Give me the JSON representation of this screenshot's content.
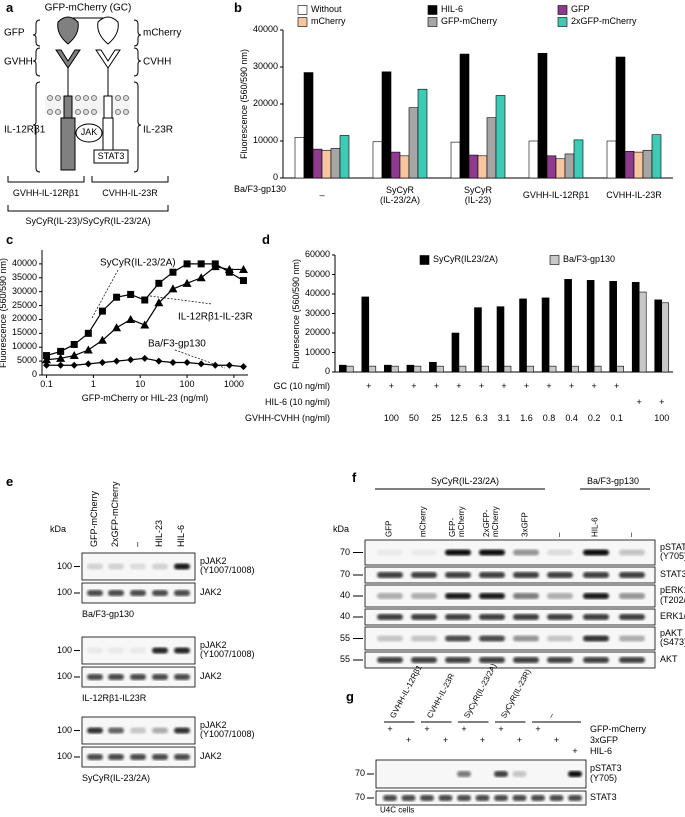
{
  "panel_labels": [
    "a",
    "b",
    "c",
    "d",
    "e",
    "f",
    "g"
  ],
  "panel_a": {
    "title": "GFP-mCherry (GC)",
    "left_labels": [
      "GFP",
      "GVHH",
      "IL-12Rβ1"
    ],
    "right_labels": [
      "mCherry",
      "CVHH",
      "IL-23R"
    ],
    "jak": "JAK",
    "stat": "STAT3",
    "receptors": [
      "GVHH-IL-12Rβ1",
      "CVHH-IL-23R"
    ],
    "construct": "SyCyR(IL-23)/SyCyR(IL-23/2A)"
  },
  "chart_data": [
    {
      "type": "bar",
      "ylabel": "Fluorescence (560/590 nm)",
      "xlabel": "Ba/F3-gp130",
      "categories": [
        "–",
        "SyCyR\n(IL-23/2A)",
        "SyCyR\n(IL-23)",
        "GVHH-IL-12Rβ1",
        "CVHH-IL-23R"
      ],
      "series": [
        {
          "name": "Without",
          "color": "#ffffff",
          "values": [
            11000,
            9800,
            9700,
            10000,
            10000
          ]
        },
        {
          "name": "HIL-6",
          "color": "#000000",
          "values": [
            28500,
            28700,
            33500,
            33700,
            32700
          ]
        },
        {
          "name": "GFP",
          "color": "#8e3a8e",
          "values": [
            7800,
            7000,
            6200,
            6000,
            7200
          ]
        },
        {
          "name": "mCherry",
          "color": "#f6c6a0",
          "values": [
            7500,
            6000,
            6000,
            5200,
            7000
          ]
        },
        {
          "name": "GFP-mCherry",
          "color": "#a6a6a6",
          "values": [
            8000,
            19000,
            16300,
            6500,
            7500
          ]
        },
        {
          "name": "2xGFP-mCherry",
          "color": "#3ecbb5",
          "values": [
            11500,
            24000,
            22300,
            10300,
            11700
          ]
        }
      ],
      "ylim": [
        0,
        40000
      ],
      "yticks": [
        0,
        10000,
        20000,
        30000,
        40000
      ],
      "legend": "top"
    },
    {
      "type": "line",
      "xscale": "log",
      "ylabel": "Fluorescence (560/590 nm)",
      "xlabel": "GFP-mCherry or HIL-23 (ng/ml)",
      "x": [
        0.1,
        0.2,
        0.39,
        0.78,
        1.56,
        3.13,
        6.25,
        12.5,
        25,
        50,
        100,
        200,
        400,
        800,
        1600
      ],
      "series": [
        {
          "name": "SyCyR(IL-23/2A)",
          "color": "#000000",
          "marker": "square",
          "values": [
            7000,
            8500,
            11000,
            15000,
            23000,
            28000,
            29000,
            27000,
            33000,
            37000,
            40000,
            40000,
            40000,
            37000,
            34000
          ]
        },
        {
          "name": "IL-12Rβ1-IL-23R",
          "color": "#000000",
          "marker": "triangle",
          "values": [
            5500,
            6000,
            7000,
            9000,
            12500,
            17000,
            20000,
            18000,
            26000,
            31000,
            33000,
            35000,
            39000,
            38000,
            38000
          ]
        },
        {
          "name": "Ba/F3-gp130",
          "color": "#000000",
          "marker": "diamond",
          "values": [
            3500,
            3500,
            3500,
            4000,
            4500,
            5000,
            5500,
            6000,
            5000,
            4500,
            4500,
            4000,
            3500,
            3500,
            3000
          ]
        }
      ],
      "xlim": [
        0.08,
        2000
      ],
      "xticks": [
        0.1,
        1,
        10,
        100,
        1000
      ],
      "ylim": [
        0,
        45000
      ],
      "yticks": [
        0,
        5000,
        10000,
        15000,
        20000,
        25000,
        30000,
        35000,
        40000
      ]
    },
    {
      "type": "bar",
      "ylabel": "Fluorescence (560/590 nm)",
      "categories": [
        null,
        null,
        null,
        null,
        null,
        null,
        null,
        null,
        null,
        null,
        null,
        null,
        null,
        null,
        null
      ],
      "series": [
        {
          "name": "SyCyR(IL23/2A)",
          "color": "#000000",
          "values": [
            3500,
            38500,
            3500,
            3500,
            5000,
            20000,
            33000,
            33500,
            37500,
            38000,
            47500,
            47000,
            46500,
            46000,
            37000
          ]
        },
        {
          "name": "Ba/F3-gp130",
          "color": "#c8c8c8",
          "values": [
            3000,
            3000,
            3000,
            3000,
            3000,
            3000,
            3000,
            3000,
            3000,
            3000,
            3000,
            3000,
            3000,
            41000,
            35500
          ]
        }
      ],
      "conditions": [
        {
          "label": "GC (10 ng/ml)",
          "cells": [
            null,
            "+",
            "+",
            "+",
            "+",
            "+",
            "+",
            "+",
            "+",
            "+",
            "+",
            "+",
            "+",
            null,
            null
          ]
        },
        {
          "label": "HIL-6 (10 ng/ml)",
          "cells": [
            null,
            null,
            null,
            null,
            null,
            null,
            null,
            null,
            null,
            null,
            null,
            null,
            null,
            "+",
            "+"
          ]
        },
        {
          "label": "GVHH-CVHH (ng/ml)",
          "cells": [
            null,
            null,
            "100",
            "50",
            "25",
            "12.5",
            "6.3",
            "3.1",
            "1.6",
            "0.8",
            "0.4",
            "0.2",
            "0.1",
            null,
            "100"
          ]
        }
      ],
      "ylim": [
        0,
        60000
      ],
      "yticks": [
        0,
        10000,
        20000,
        30000,
        40000,
        50000,
        60000
      ],
      "legend": "top"
    }
  ],
  "panel_e": {
    "kda": "kDa",
    "lanes": [
      "GFP-mCherry",
      "2xGFP-mCherry",
      "–",
      "HIL-23",
      "HIL-6"
    ],
    "blots": [
      {
        "rows": [
          {
            "marker": 100,
            "label": "pJAK2\n(Y1007/1008)"
          },
          {
            "marker": 100,
            "label": "JAK2"
          }
        ],
        "cells": "Ba/F3-gp130"
      },
      {
        "rows": [
          {
            "marker": 100,
            "label": "pJAK2\n(Y1007/1008)"
          },
          {
            "marker": 100,
            "label": "JAK2"
          }
        ],
        "cells": "IL-12Rβ1-IL23R"
      },
      {
        "rows": [
          {
            "marker": 100,
            "label": "pJAK2\n(Y1007/1008)"
          },
          {
            "marker": 100,
            "label": "JAK2"
          }
        ],
        "cells": "SyCyR(IL-23/2A)"
      }
    ]
  },
  "panel_f": {
    "kda": "kDa",
    "groups": [
      "SyCyR(IL-23/2A)",
      "Ba/F3-gp130"
    ],
    "lanes": [
      "GFP",
      "mCherry",
      "GFP-\nmCherry",
      "2xGFP-\nmCherry",
      "3xGFP",
      "–",
      "HIL-6",
      "–"
    ],
    "rows": [
      {
        "marker": 70,
        "label": "pSTAT3\n(Y705)"
      },
      {
        "marker": 70,
        "label": "STAT3"
      },
      {
        "marker": 40,
        "label": "pERK1/2\n(T202/Y204)"
      },
      {
        "marker": 40,
        "label": "ERK1/2"
      },
      {
        "marker": 55,
        "label": "pAKT\n(S473)"
      },
      {
        "marker": 55,
        "label": "AKT"
      }
    ]
  },
  "panel_g": {
    "lane_groups": [
      "GVHH-IL-12Rβ1",
      "CVHH-IL-23R",
      "SyCyR(IL-23/2A)",
      "SyCyR(IL-23R)",
      "–"
    ],
    "treatments": [
      {
        "label": "GFP-mCherry",
        "cells": [
          "+",
          null,
          "+",
          null,
          "+",
          null,
          "+",
          null,
          "+",
          null,
          null
        ]
      },
      {
        "label": "3xGFP",
        "cells": [
          null,
          "+",
          null,
          "+",
          null,
          "+",
          null,
          "+",
          null,
          "+",
          null
        ]
      },
      {
        "label": "HIL-6",
        "cells": [
          null,
          null,
          null,
          null,
          null,
          null,
          null,
          null,
          null,
          null,
          "+"
        ]
      }
    ],
    "rows": [
      {
        "marker": 70,
        "label": "pSTAT3\n(Y705)"
      },
      {
        "marker": 70,
        "label": "STAT3"
      }
    ],
    "cells": "U4C cells"
  }
}
